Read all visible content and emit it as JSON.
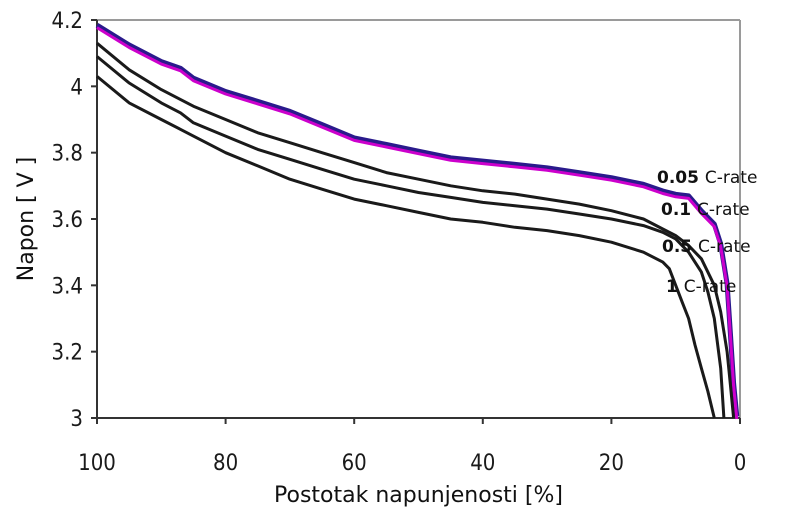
{
  "chart_data": {
    "type": "line",
    "xlabel": "Postotak napunjenosti [%]",
    "ylabel": "Napon [ V ]",
    "xlim": [
      100,
      0
    ],
    "ylim": [
      3.0,
      4.2
    ],
    "x_ticks": [
      "100",
      "80",
      "60",
      "40",
      "20",
      "0"
    ],
    "y_ticks": [
      "3",
      "3.2",
      "3.4",
      "3.6",
      "3.8",
      "4",
      "4.2"
    ],
    "grid": false,
    "series": [
      {
        "name": "0.05 C-rate",
        "label_num": "0.05",
        "label_unit": "C-rate",
        "color": "#2a1a8c",
        "color2": "#cc00cc",
        "points": [
          [
            100,
            4.18
          ],
          [
            95,
            4.12
          ],
          [
            90,
            4.07
          ],
          [
            87,
            4.05
          ],
          [
            85,
            4.02
          ],
          [
            80,
            3.98
          ],
          [
            75,
            3.95
          ],
          [
            70,
            3.92
          ],
          [
            65,
            3.88
          ],
          [
            60,
            3.84
          ],
          [
            55,
            3.82
          ],
          [
            50,
            3.8
          ],
          [
            45,
            3.78
          ],
          [
            40,
            3.77
          ],
          [
            35,
            3.76
          ],
          [
            30,
            3.75
          ],
          [
            25,
            3.735
          ],
          [
            20,
            3.72
          ],
          [
            15,
            3.7
          ],
          [
            12,
            3.68
          ],
          [
            10,
            3.67
          ],
          [
            8,
            3.665
          ],
          [
            6,
            3.62
          ],
          [
            4,
            3.58
          ],
          [
            3,
            3.52
          ],
          [
            2,
            3.4
          ],
          [
            1.5,
            3.25
          ],
          [
            1,
            3.1
          ],
          [
            0.5,
            3.0
          ]
        ]
      },
      {
        "name": "0.1 C-rate",
        "label_num": "0.1",
        "label_unit": "C-rate",
        "color": "#1a1a1a",
        "points": [
          [
            100,
            4.13
          ],
          [
            95,
            4.05
          ],
          [
            90,
            3.99
          ],
          [
            87,
            3.96
          ],
          [
            85,
            3.94
          ],
          [
            80,
            3.9
          ],
          [
            75,
            3.86
          ],
          [
            70,
            3.83
          ],
          [
            65,
            3.8
          ],
          [
            60,
            3.77
          ],
          [
            55,
            3.74
          ],
          [
            50,
            3.72
          ],
          [
            45,
            3.7
          ],
          [
            40,
            3.685
          ],
          [
            35,
            3.675
          ],
          [
            30,
            3.66
          ],
          [
            25,
            3.645
          ],
          [
            20,
            3.625
          ],
          [
            15,
            3.6
          ],
          [
            12,
            3.57
          ],
          [
            10,
            3.55
          ],
          [
            8,
            3.52
          ],
          [
            6,
            3.48
          ],
          [
            4,
            3.4
          ],
          [
            3,
            3.32
          ],
          [
            2,
            3.2
          ],
          [
            1.5,
            3.1
          ],
          [
            1,
            3.0
          ]
        ]
      },
      {
        "name": "0.5 C-rate",
        "label_num": "0.5",
        "label_unit": "C-rate",
        "color": "#1a1a1a",
        "points": [
          [
            100,
            4.09
          ],
          [
            95,
            4.01
          ],
          [
            90,
            3.95
          ],
          [
            87,
            3.92
          ],
          [
            85,
            3.89
          ],
          [
            80,
            3.85
          ],
          [
            75,
            3.81
          ],
          [
            70,
            3.78
          ],
          [
            65,
            3.75
          ],
          [
            60,
            3.72
          ],
          [
            55,
            3.7
          ],
          [
            50,
            3.68
          ],
          [
            45,
            3.665
          ],
          [
            40,
            3.65
          ],
          [
            35,
            3.64
          ],
          [
            30,
            3.63
          ],
          [
            25,
            3.615
          ],
          [
            20,
            3.6
          ],
          [
            15,
            3.58
          ],
          [
            12,
            3.56
          ],
          [
            10,
            3.54
          ],
          [
            8,
            3.5
          ],
          [
            6,
            3.44
          ],
          [
            5,
            3.38
          ],
          [
            4,
            3.3
          ],
          [
            3,
            3.15
          ],
          [
            2.5,
            3.0
          ]
        ]
      },
      {
        "name": "1 C-rate",
        "label_num": "1",
        "label_unit": "C-rate",
        "color": "#1a1a1a",
        "points": [
          [
            100,
            4.03
          ],
          [
            95,
            3.95
          ],
          [
            90,
            3.9
          ],
          [
            87,
            3.87
          ],
          [
            85,
            3.85
          ],
          [
            80,
            3.8
          ],
          [
            75,
            3.76
          ],
          [
            70,
            3.72
          ],
          [
            65,
            3.69
          ],
          [
            60,
            3.66
          ],
          [
            55,
            3.64
          ],
          [
            50,
            3.62
          ],
          [
            45,
            3.6
          ],
          [
            40,
            3.59
          ],
          [
            35,
            3.575
          ],
          [
            30,
            3.565
          ],
          [
            25,
            3.55
          ],
          [
            20,
            3.53
          ],
          [
            15,
            3.5
          ],
          [
            12,
            3.47
          ],
          [
            11,
            3.45
          ],
          [
            10,
            3.4
          ],
          [
            9,
            3.35
          ],
          [
            8,
            3.3
          ],
          [
            7,
            3.22
          ],
          [
            6,
            3.15
          ],
          [
            5,
            3.08
          ],
          [
            4,
            3.0
          ]
        ]
      }
    ]
  }
}
